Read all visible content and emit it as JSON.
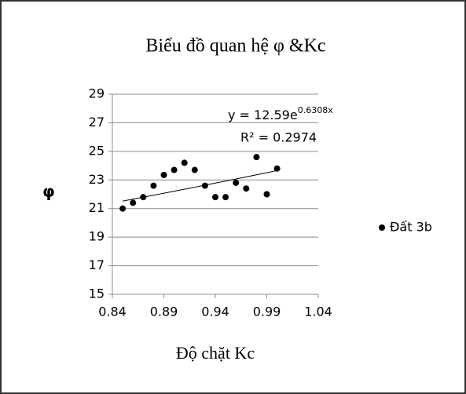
{
  "chart_data": {
    "type": "scatter",
    "title": "Biểu đồ quan hệ φ &Kc",
    "x_label": "Độ chặt Kc",
    "y_label": "φ",
    "x": [
      0.85,
      0.86,
      0.87,
      0.88,
      0.89,
      0.9,
      0.91,
      0.92,
      0.93,
      0.94,
      0.95,
      0.96,
      0.97,
      0.98,
      0.99,
      1.0
    ],
    "series": [
      {
        "name": "Đất 3b",
        "color": "#000000",
        "values": [
          21.0,
          21.4,
          21.8,
          22.6,
          23.35,
          23.7,
          24.2,
          23.7,
          22.6,
          21.8,
          21.8,
          22.8,
          22.4,
          24.6,
          22.0,
          23.8
        ]
      }
    ],
    "trendline": {
      "equation": "y = 12.59e",
      "exponent": "0.6308x",
      "r2_label": "R² = 0.2974",
      "a": 12.59,
      "b": 0.6308
    },
    "xlim": [
      0.84,
      1.04
    ],
    "xticks": [
      0.84,
      0.89,
      0.94,
      0.99,
      1.04
    ],
    "ylim": [
      15,
      29
    ],
    "yticks": [
      15,
      17,
      19,
      21,
      23,
      25,
      27,
      29
    ],
    "grid": true,
    "legend": "right"
  }
}
